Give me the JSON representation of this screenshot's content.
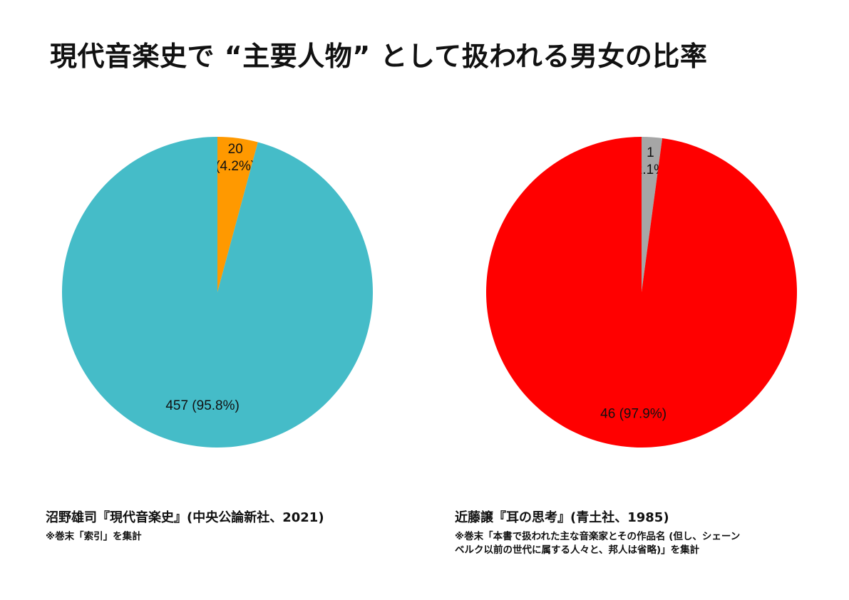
{
  "title": "現代音楽史で “主要人物” として扱われる男女の比率",
  "chart_data": [
    {
      "type": "pie",
      "slices": [
        {
          "value": 20,
          "percent": 4.2,
          "label_lines": [
            "20",
            "(4.2%)"
          ],
          "color": "#ff9900"
        },
        {
          "value": 457,
          "percent": 95.8,
          "label_lines": [
            "457 (95.8%)"
          ],
          "color": "#45bcc8"
        }
      ],
      "source": "沼野雄司『現代音楽史』(中央公論新社、2021)",
      "note_lines": [
        "※巻末「索引」を集計"
      ]
    },
    {
      "type": "pie",
      "slices": [
        {
          "value": 1,
          "percent": 2.1,
          "label_lines": [
            "1",
            "(2.1%)"
          ],
          "color": "#a6a6a6"
        },
        {
          "value": 46,
          "percent": 97.9,
          "label_lines": [
            "46 (97.9%)"
          ],
          "color": "#ff0000"
        }
      ],
      "source": "近藤譲『耳の思考』(青土社、1985)",
      "note_lines": [
        "※巻末「本書で扱われた主な音楽家とその作品名 (但し、シェーン",
        "ベルク以前の世代に属する人々と、邦人は省略)」を集計"
      ]
    }
  ]
}
